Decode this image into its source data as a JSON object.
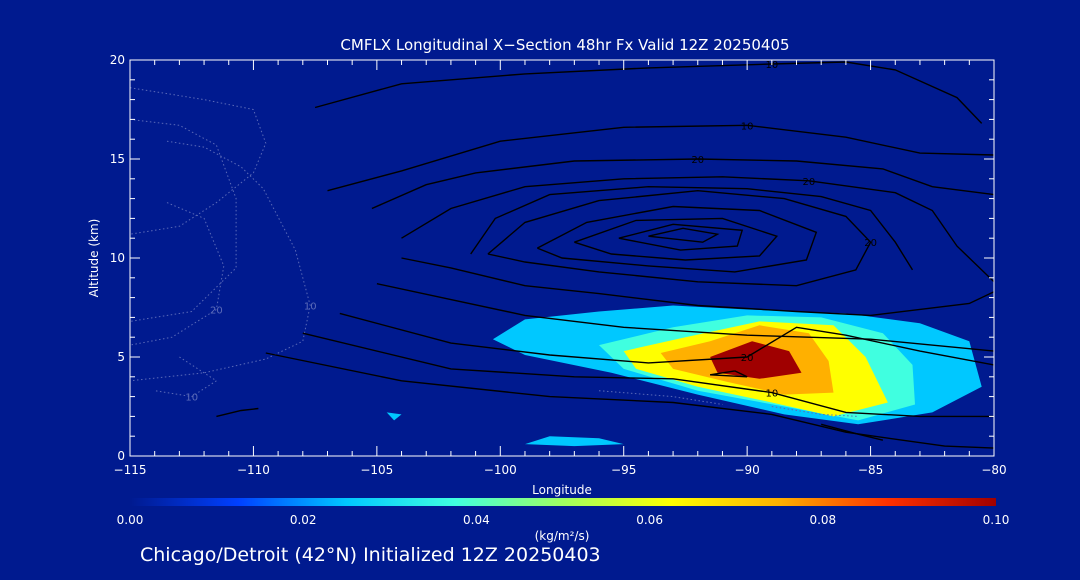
{
  "chart_data": {
    "type": "heatmap",
    "title": "CMFLX Longitudinal X−Section 48hr  Fx Valid 12Z 20250405",
    "xlabel": "Longitude",
    "ylabel": "Altitude (km)",
    "xlim": [
      -115,
      -80
    ],
    "ylim": [
      0,
      20
    ],
    "xticks": [
      -115,
      -110,
      -105,
      -100,
      -95,
      -90,
      -85,
      -80
    ],
    "xtick_labels": [
      "−115",
      "−110",
      "−105",
      "−100",
      "−95",
      "−90",
      "−85",
      "−80"
    ],
    "yticks": [
      0,
      5,
      10,
      15,
      20
    ],
    "ytick_labels": [
      "0",
      "5",
      "10",
      "15",
      "20"
    ],
    "colorbar": {
      "label": "(kg/m²/s)",
      "min": 0.0,
      "max": 0.1,
      "ticks": [
        0.0,
        0.02,
        0.04,
        0.06,
        0.08,
        0.1
      ],
      "tick_labels": [
        "0.00",
        "0.02",
        "0.04",
        "0.06",
        "0.08",
        "0.10"
      ],
      "colors": [
        "#001a8f",
        "#0040ff",
        "#00c8ff",
        "#40ffe0",
        "#a0ff60",
        "#ffff00",
        "#ffb000",
        "#ff3000",
        "#a00000"
      ]
    },
    "flux_regions": [
      {
        "level": 0.02,
        "polygon": [
          [
            -100.3,
            5.9
          ],
          [
            -99,
            6.9
          ],
          [
            -96,
            7.3
          ],
          [
            -93,
            7.6
          ],
          [
            -90,
            7.4
          ],
          [
            -86,
            7.2
          ],
          [
            -83,
            6.7
          ],
          [
            -81,
            5.8
          ],
          [
            -80.5,
            3.5
          ],
          [
            -82.5,
            2.2
          ],
          [
            -85.5,
            1.6
          ],
          [
            -88.5,
            2.1
          ],
          [
            -92,
            3.1
          ],
          [
            -95.5,
            4.2
          ],
          [
            -99,
            5.1
          ]
        ]
      },
      {
        "level": 0.04,
        "polygon": [
          [
            -96,
            5.6
          ],
          [
            -93,
            6.5
          ],
          [
            -90,
            7.1
          ],
          [
            -87,
            7.0
          ],
          [
            -84.5,
            6.2
          ],
          [
            -83.3,
            4.6
          ],
          [
            -83.2,
            2.6
          ],
          [
            -85.5,
            1.8
          ],
          [
            -88.5,
            2.5
          ],
          [
            -92,
            3.3
          ],
          [
            -95,
            4.4
          ]
        ]
      },
      {
        "level": 0.06,
        "polygon": [
          [
            -95,
            5.3
          ],
          [
            -92.5,
            6.0
          ],
          [
            -89.5,
            6.8
          ],
          [
            -86.5,
            6.6
          ],
          [
            -85.2,
            5.0
          ],
          [
            -84.3,
            2.7
          ],
          [
            -86.5,
            2.0
          ],
          [
            -89,
            2.7
          ],
          [
            -92,
            3.5
          ],
          [
            -94.5,
            4.4
          ]
        ]
      },
      {
        "level": 0.08,
        "polygon": [
          [
            -93.5,
            5.2
          ],
          [
            -91.5,
            5.8
          ],
          [
            -89.5,
            6.6
          ],
          [
            -87.5,
            6.2
          ],
          [
            -86.7,
            4.8
          ],
          [
            -86.5,
            3.2
          ],
          [
            -88.5,
            3.1
          ],
          [
            -91,
            3.8
          ],
          [
            -93,
            4.4
          ]
        ]
      },
      {
        "level": 0.095,
        "polygon": [
          [
            -91.5,
            5.0
          ],
          [
            -89.8,
            5.8
          ],
          [
            -88.3,
            5.3
          ],
          [
            -87.8,
            4.2
          ],
          [
            -89.5,
            3.9
          ],
          [
            -91.2,
            4.2
          ]
        ]
      },
      {
        "level": 0.02,
        "polygon": [
          [
            -98,
            1.0
          ],
          [
            -96,
            0.9
          ],
          [
            -95,
            0.6
          ],
          [
            -97,
            0.5
          ],
          [
            -99,
            0.6
          ]
        ]
      },
      {
        "level": 0.02,
        "polygon": [
          [
            -104.6,
            2.2
          ],
          [
            -104,
            2.1
          ],
          [
            -104.3,
            1.8
          ]
        ]
      }
    ],
    "contours_solid": [
      {
        "label": "10",
        "points": [
          [
            -107.5,
            17.6
          ],
          [
            -104,
            18.8
          ],
          [
            -99,
            19.3
          ],
          [
            -94,
            19.6
          ],
          [
            -89,
            19.8
          ],
          [
            -86,
            19.9
          ],
          [
            -84,
            19.5
          ],
          [
            -81.5,
            18.1
          ],
          [
            -80.5,
            16.8
          ]
        ]
      },
      {
        "label": "10",
        "points": [
          [
            -107,
            13.4
          ],
          [
            -104,
            14.4
          ],
          [
            -100,
            15.9
          ],
          [
            -95,
            16.6
          ],
          [
            -90,
            16.7
          ],
          [
            -86,
            16.1
          ],
          [
            -83,
            15.3
          ],
          [
            -80,
            15.2
          ]
        ]
      },
      {
        "label": "20",
        "points": [
          [
            -105.2,
            12.5
          ],
          [
            -103,
            13.7
          ],
          [
            -101,
            14.3
          ],
          [
            -97,
            14.9
          ],
          [
            -92,
            15.0
          ],
          [
            -88,
            14.9
          ],
          [
            -84.5,
            14.5
          ],
          [
            -82.5,
            13.6
          ],
          [
            -80,
            13.2
          ]
        ]
      },
      {
        "label": "20",
        "points": [
          [
            -104,
            11.0
          ],
          [
            -102,
            12.5
          ],
          [
            -99,
            13.6
          ],
          [
            -95,
            14.0
          ],
          [
            -91,
            14.1
          ],
          [
            -87.5,
            13.9
          ],
          [
            -84,
            13.3
          ],
          [
            -82.5,
            12.4
          ],
          [
            -81.5,
            10.6
          ],
          [
            -80,
            8.8
          ]
        ]
      },
      {
        "label": "",
        "points": [
          [
            -101.2,
            10.2
          ],
          [
            -100.2,
            12.0
          ],
          [
            -98,
            13.2
          ],
          [
            -94,
            13.6
          ],
          [
            -90,
            13.5
          ],
          [
            -87,
            13.1
          ],
          [
            -85,
            12.4
          ],
          [
            -84,
            10.8
          ],
          [
            -83.3,
            9.4
          ]
        ]
      },
      {
        "label": "20",
        "points": [
          [
            -100.5,
            10.2
          ],
          [
            -99,
            11.8
          ],
          [
            -96,
            12.9
          ],
          [
            -92,
            13.4
          ],
          [
            -88.5,
            13.0
          ],
          [
            -86,
            12.1
          ],
          [
            -85,
            10.8
          ],
          [
            -85.6,
            9.4
          ],
          [
            -88,
            8.6
          ],
          [
            -92,
            8.8
          ],
          [
            -96,
            9.3
          ],
          [
            -99,
            9.8
          ],
          [
            -100.5,
            10.2
          ]
        ]
      },
      {
        "label": "",
        "points": [
          [
            -98.5,
            10.5
          ],
          [
            -96.5,
            11.8
          ],
          [
            -93,
            12.6
          ],
          [
            -89.5,
            12.4
          ],
          [
            -87.2,
            11.3
          ],
          [
            -87.6,
            9.9
          ],
          [
            -90.5,
            9.3
          ],
          [
            -94,
            9.6
          ],
          [
            -97.5,
            10.0
          ],
          [
            -98.5,
            10.5
          ]
        ]
      },
      {
        "label": "",
        "points": [
          [
            -97,
            10.8
          ],
          [
            -94.5,
            11.9
          ],
          [
            -91,
            12.0
          ],
          [
            -88.8,
            11.1
          ],
          [
            -89.5,
            10.1
          ],
          [
            -92.5,
            9.9
          ],
          [
            -95.5,
            10.2
          ],
          [
            -97,
            10.8
          ]
        ]
      },
      {
        "label": "",
        "points": [
          [
            -95.2,
            11.0
          ],
          [
            -93,
            11.7
          ],
          [
            -90.2,
            11.4
          ],
          [
            -90.4,
            10.6
          ],
          [
            -92.7,
            10.4
          ],
          [
            -95.2,
            11.0
          ]
        ]
      },
      {
        "label": "",
        "points": [
          [
            -94,
            11.1
          ],
          [
            -92.6,
            11.5
          ],
          [
            -91.2,
            11.2
          ],
          [
            -91.8,
            10.8
          ],
          [
            -94,
            11.1
          ]
        ]
      },
      {
        "label": "",
        "points": [
          [
            -104,
            10.0
          ],
          [
            -102,
            9.5
          ],
          [
            -99,
            8.6
          ],
          [
            -96,
            8.2
          ],
          [
            -92,
            7.6
          ],
          [
            -88,
            7.3
          ],
          [
            -85,
            7.1
          ],
          [
            -81,
            7.7
          ],
          [
            -80,
            8.3
          ]
        ]
      },
      {
        "label": "",
        "points": [
          [
            -105,
            8.7
          ],
          [
            -102,
            7.9
          ],
          [
            -99,
            7.1
          ],
          [
            -95,
            6.5
          ],
          [
            -90,
            6.1
          ],
          [
            -85,
            5.9
          ],
          [
            -80,
            5.3
          ]
        ]
      },
      {
        "label": "20",
        "points": [
          [
            -106.5,
            7.2
          ],
          [
            -102,
            5.7
          ],
          [
            -98,
            5.1
          ],
          [
            -94,
            4.7
          ],
          [
            -90,
            5.0
          ],
          [
            -88,
            6.5
          ],
          [
            -86,
            6.1
          ],
          [
            -83,
            5.3
          ],
          [
            -80,
            4.6
          ]
        ]
      },
      {
        "label": "10",
        "points": [
          [
            -108,
            6.2
          ],
          [
            -102,
            4.4
          ],
          [
            -97,
            4.0
          ],
          [
            -93,
            3.9
          ],
          [
            -89,
            3.2
          ],
          [
            -86,
            2.2
          ],
          [
            -83,
            2.0
          ],
          [
            -80,
            2.0
          ]
        ]
      },
      {
        "label": "",
        "points": [
          [
            -109.5,
            5.2
          ],
          [
            -104,
            3.8
          ],
          [
            -98,
            3.0
          ],
          [
            -93,
            2.7
          ],
          [
            -89,
            2.1
          ],
          [
            -86,
            1.2
          ],
          [
            -82,
            0.5
          ],
          [
            -80,
            0.4
          ]
        ]
      },
      {
        "label": "",
        "points": [
          [
            -90.5,
            4.3
          ],
          [
            -90,
            4.0
          ],
          [
            -91.5,
            4.1
          ],
          [
            -90.5,
            4.3
          ]
        ]
      },
      {
        "label": "",
        "points": [
          [
            -111.5,
            2.0
          ],
          [
            -110.5,
            2.3
          ],
          [
            -109.8,
            2.4
          ]
        ]
      },
      {
        "label": "",
        "points": [
          [
            -87,
            1.6
          ],
          [
            -85.5,
            1.1
          ],
          [
            -84.5,
            0.8
          ]
        ]
      }
    ],
    "contours_dotted": [
      {
        "label": "",
        "points": [
          [
            -115,
            18.6
          ],
          [
            -112,
            18.0
          ],
          [
            -110,
            17.5
          ],
          [
            -109.5,
            15.8
          ],
          [
            -110,
            14.3
          ],
          [
            -111.5,
            12.8
          ],
          [
            -113,
            11.6
          ],
          [
            -115,
            11.2
          ]
        ]
      },
      {
        "label": "10",
        "points": [
          [
            -113.5,
            15.9
          ],
          [
            -112,
            15.6
          ],
          [
            -110.5,
            14.6
          ],
          [
            -109.6,
            13.5
          ],
          [
            -108.3,
            10.4
          ],
          [
            -107.7,
            7.6
          ],
          [
            -108,
            5.8
          ],
          [
            -109.5,
            4.9
          ],
          [
            -112,
            4.2
          ],
          [
            -115,
            3.8
          ]
        ]
      },
      {
        "label": "20",
        "points": [
          [
            -113.5,
            12.8
          ],
          [
            -112,
            12.0
          ],
          [
            -111.2,
            9.6
          ],
          [
            -111.5,
            7.4
          ],
          [
            -113.3,
            6.0
          ],
          [
            -115,
            5.6
          ]
        ]
      },
      {
        "label": "",
        "points": [
          [
            -115,
            17.0
          ],
          [
            -113,
            16.7
          ],
          [
            -111.5,
            15.7
          ],
          [
            -110.7,
            13.0
          ],
          [
            -110.7,
            9.5
          ],
          [
            -112.5,
            7.3
          ],
          [
            -115,
            6.8
          ]
        ]
      },
      {
        "label": "10",
        "points": [
          [
            -113,
            5.0
          ],
          [
            -111.5,
            3.8
          ],
          [
            -112.5,
            3.0
          ],
          [
            -114,
            3.3
          ]
        ]
      },
      {
        "label": "",
        "points": [
          [
            -96,
            3.3
          ],
          [
            -93,
            3.0
          ],
          [
            -91,
            2.6
          ]
        ]
      },
      {
        "label": "",
        "points": [
          [
            -89,
            2.5
          ],
          [
            -87,
            2.1
          ],
          [
            -85.5,
            2.0
          ]
        ]
      }
    ],
    "annotations": [
      {
        "text": "Chicago/Detroit (42°N) Initialized 12Z 20250403"
      }
    ]
  }
}
